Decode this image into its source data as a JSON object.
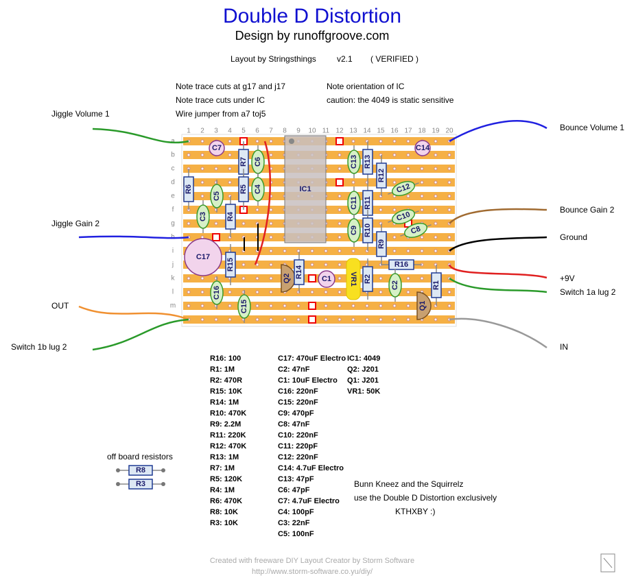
{
  "header": {
    "title": "Double D Distortion",
    "subtitle": "Design by runoffgroove.com",
    "layout": "Layout by Stringsthings",
    "version": "v2.1",
    "status": "( VERIFIED )"
  },
  "notes_left": [
    "Note trace cuts at g17 and j17",
    "Note trace cuts under IC",
    "Wire jumper from a7 toj5"
  ],
  "notes_right": [
    "Note orientation of IC",
    "caution:  the 4049 is static sensitive"
  ],
  "board": {
    "columns": [
      "1",
      "2",
      "3",
      "4",
      "5",
      "6",
      "7",
      "8",
      "9",
      "10",
      "11",
      "12",
      "13",
      "14",
      "15",
      "16",
      "17",
      "18",
      "19",
      "20"
    ],
    "rows": [
      "a",
      "b",
      "c",
      "d",
      "e",
      "f",
      "g",
      "h",
      "i",
      "j",
      "k",
      "l",
      "m"
    ],
    "components": [
      "C7",
      "C14",
      "C17",
      "C1",
      "R7",
      "C6",
      "R5",
      "C4",
      "R6",
      "C5",
      "C3",
      "R4",
      "IC1",
      "C13",
      "R13",
      "R12",
      "C12",
      "C11",
      "R11",
      "C10",
      "C8",
      "C9",
      "R10",
      "R9",
      "R15",
      "R16",
      "Q2",
      "R14",
      "VR1",
      "R2",
      "C2",
      "R1",
      "C16",
      "C15",
      "Q1"
    ]
  },
  "connections_left": [
    "Jiggle Volume 1",
    "Jiggle Gain 2",
    "OUT",
    "Switch 1b lug 2"
  ],
  "connections_right": [
    "Bounce Volume 1",
    "Bounce Gain 2",
    "Ground",
    "+9V",
    "Switch 1a lug 2",
    "IN"
  ],
  "bom": {
    "resistors": [
      "R16: 100",
      "R1: 1M",
      "R2: 470R",
      "R15: 10K",
      "R14: 1M",
      "R10: 470K",
      "R9: 2.2M",
      "R11: 220K",
      "R12: 470K",
      "R13: 1M",
      "R7: 1M",
      "R5: 120K",
      "R4: 1M",
      "R6: 470K",
      "R8: 10K",
      "R3: 10K"
    ],
    "capacitors": [
      "C17: 470uF Electro",
      "C2: 47nF",
      "C1: 10uF Electro",
      "C16: 220nF",
      "C15: 220nF",
      "C9: 470pF",
      "C8: 47nF",
      "C10: 220nF",
      "C11: 220pF",
      "C12: 220nF",
      "C14: 4.7uF Electro",
      "C13: 47pF",
      "C6: 47pF",
      "C7: 4.7uF Electro",
      "C4: 100pF",
      "C3: 22nF",
      "C5: 100nF"
    ],
    "semis": [
      "IC1: 4049",
      "Q2: J201",
      "Q1: J201",
      "VR1: 50K"
    ]
  },
  "offboard": {
    "title": "off board resistors",
    "resistors": [
      "R8",
      "R3"
    ]
  },
  "message": [
    "Bunn Kneez and the Squirrelz",
    "use the Double D Distortion exclusively",
    "KTHXBY :)"
  ],
  "footer": [
    "Created with freeware DIY Layout Creator by Storm Software",
    "http://www.storm-software.co.yu/diy/"
  ]
}
